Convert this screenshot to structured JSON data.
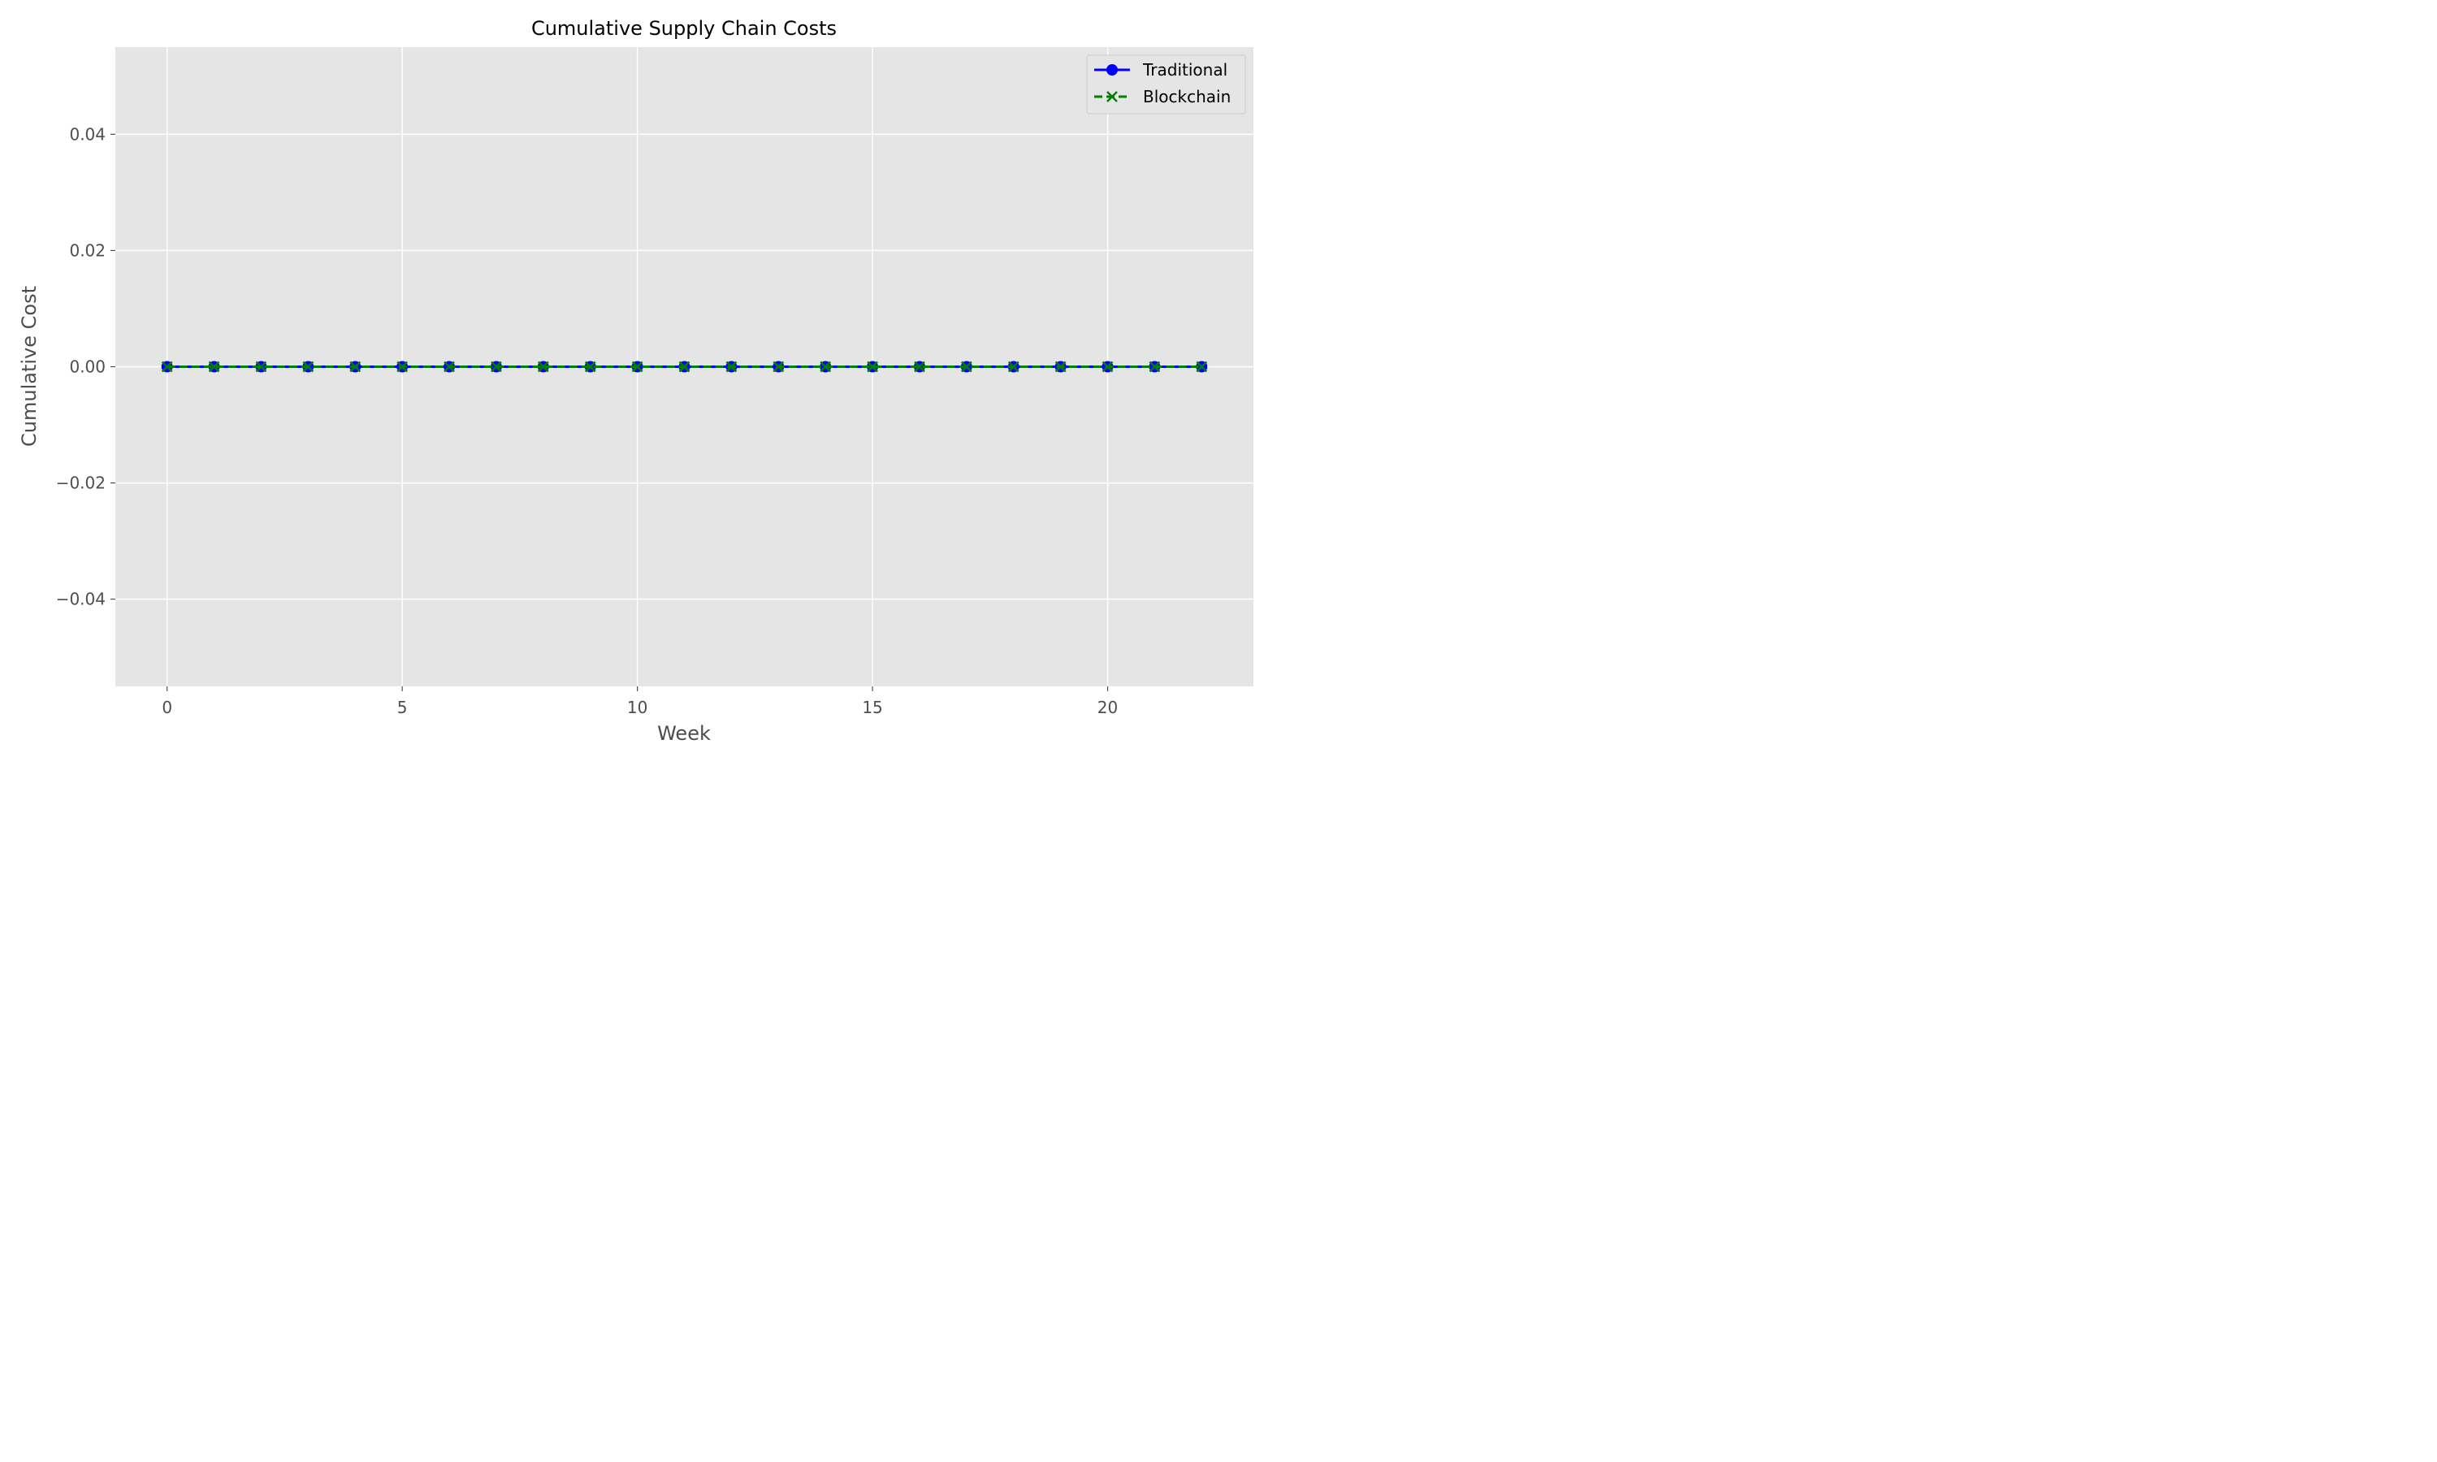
{
  "chart_data": {
    "type": "line",
    "title": "Cumulative Supply Chain Costs",
    "xlabel": "Week",
    "ylabel": "Cumulative Cost",
    "xlim": [
      -1.1,
      23.1
    ],
    "ylim": [
      -0.055,
      0.055
    ],
    "xticks": [
      0,
      5,
      10,
      15,
      20
    ],
    "xtick_labels": [
      "0",
      "5",
      "10",
      "15",
      "20"
    ],
    "yticks": [
      0.04,
      0.02,
      0.0,
      -0.02,
      -0.04
    ],
    "ytick_labels": [
      "0.04",
      "0.02",
      "0.00",
      "−0.02",
      "−0.04"
    ],
    "grid": true,
    "legend_position": "top-right",
    "x": [
      0,
      1,
      2,
      3,
      4,
      5,
      6,
      7,
      8,
      9,
      10,
      11,
      12,
      13,
      14,
      15,
      16,
      17,
      18,
      19,
      20,
      21,
      22
    ],
    "series": [
      {
        "name": "Traditional",
        "color": "#0000ff",
        "marker": "circle",
        "linestyle": "solid",
        "values": [
          0,
          0,
          0,
          0,
          0,
          0,
          0,
          0,
          0,
          0,
          0,
          0,
          0,
          0,
          0,
          0,
          0,
          0,
          0,
          0,
          0,
          0,
          0
        ]
      },
      {
        "name": "Blockchain",
        "color": "#008000",
        "marker": "x",
        "linestyle": "dashed",
        "values": [
          0,
          0,
          0,
          0,
          0,
          0,
          0,
          0,
          0,
          0,
          0,
          0,
          0,
          0,
          0,
          0,
          0,
          0,
          0,
          0,
          0,
          0,
          0
        ]
      }
    ],
    "plot_background": "#e5e5e5",
    "grid_color": "#ffffff"
  }
}
